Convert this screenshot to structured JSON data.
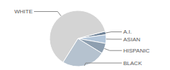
{
  "chart_data": {
    "type": "pie",
    "categories": [
      "A.I.",
      "ASIAN",
      "HISPANIC",
      "BLACK",
      "WHITE"
    ],
    "values": [
      2,
      5,
      6,
      25,
      62
    ],
    "colors": [
      "#6d8196",
      "#b3c6da",
      "#8e9fb0",
      "#b5c2cf",
      "#d4d4d4"
    ]
  }
}
